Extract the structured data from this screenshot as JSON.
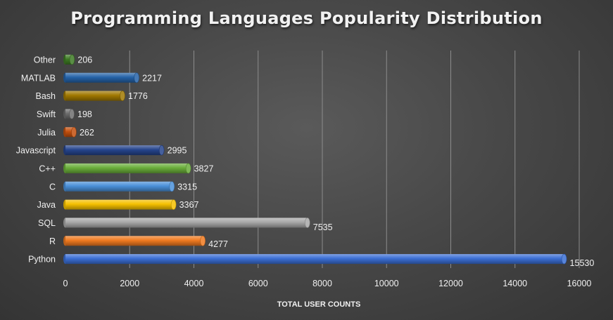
{
  "chart_data": {
    "type": "bar",
    "orientation": "horizontal",
    "title": "Programming Languages Popularity Distribution",
    "xlabel": "TOTAL USER COUNTS",
    "ylabel": "",
    "xlim": [
      0,
      16000
    ],
    "x_ticks": [
      0,
      2000,
      4000,
      6000,
      8000,
      10000,
      12000,
      14000,
      16000
    ],
    "grid": true,
    "categories": [
      "Python",
      "R",
      "SQL",
      "Java",
      "C",
      "C++",
      "Javascript",
      "Julia",
      "Swift",
      "Bash",
      "MATLAB",
      "Other"
    ],
    "values": [
      15530,
      4277,
      7535,
      3367,
      3315,
      3827,
      2995,
      262,
      198,
      1776,
      2217,
      206
    ],
    "colors": [
      "#3b6fd4",
      "#f07a20",
      "#a8a8a8",
      "#f5c000",
      "#4a90d9",
      "#6aae3a",
      "#25448c",
      "#c4500e",
      "#6e6e6e",
      "#a07800",
      "#2563a8",
      "#3d7a24"
    ]
  }
}
